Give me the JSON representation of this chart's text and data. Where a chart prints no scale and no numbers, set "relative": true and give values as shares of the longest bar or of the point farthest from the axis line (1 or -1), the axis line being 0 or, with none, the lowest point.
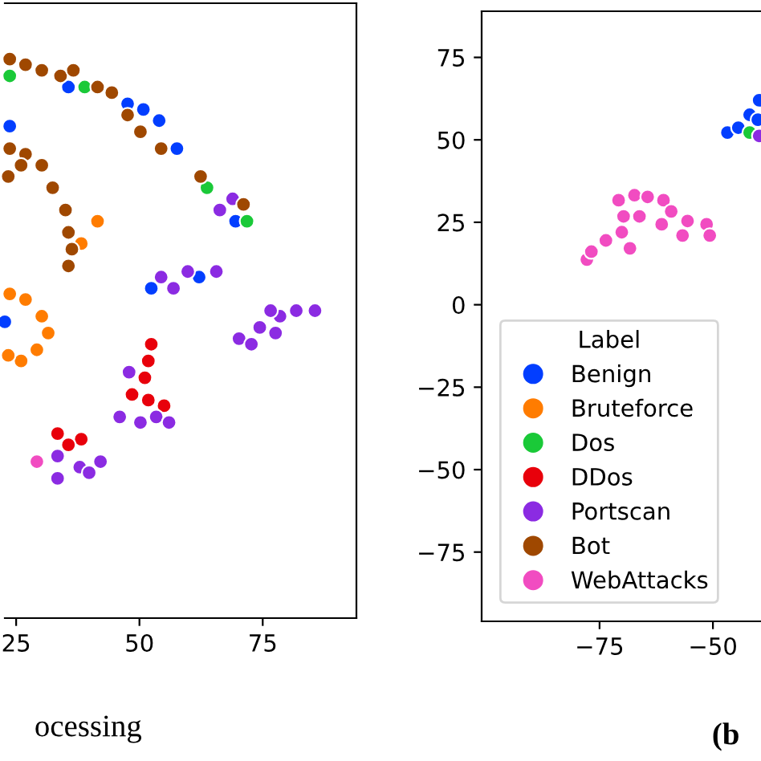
{
  "chart_data": [
    {
      "type": "scatter",
      "xlabel": "ocessing",
      "relative": true,
      "xlim": [
        22.7,
        94
      ],
      "xticks": [
        25,
        50,
        75
      ],
      "grid": false,
      "legend": false,
      "marker": "circle",
      "series": [
        {
          "color": "#023eff",
          "x": [
            35.6,
            47.6,
            50.8,
            54,
            null,
            57.6,
            69.5,
            23.7,
            52.4,
            62.1,
            22.7
          ],
          "values": [
            0.95,
            0.92,
            0.91,
            0.89,
            null,
            0.84,
            0.71,
            0.88,
            0.59,
            0.61,
            0.53
          ]
        },
        {
          "color": "#ff7c00",
          "x": [
            null,
            41.5,
            38.2,
            23.7,
            26.9,
            30.2,
            31.5,
            29.2,
            26,
            23.4,
            null
          ],
          "values": [
            null,
            0.71,
            0.67,
            0.58,
            0.57,
            0.54,
            0.51,
            0.48,
            0.46,
            0.47,
            null
          ]
        },
        {
          "color": "#1ac938",
          "x": [
            38.9,
            63.7,
            71.8,
            23.7
          ],
          "values": [
            0.95,
            0.77,
            0.71,
            0.97
          ]
        },
        {
          "color": "#e8000b",
          "x": [
            52.4,
            51.8,
            51.1,
            48.5,
            51.8,
            55,
            33.4,
            38.2,
            35.6
          ],
          "values": [
            0.49,
            0.46,
            0.43,
            0.4,
            0.39,
            0.38,
            0.33,
            0.32,
            0.31
          ]
        },
        {
          "color": "#8b2be2",
          "x": [
            66.3,
            68.9,
            54.4,
            56.9,
            59.8,
            65.6,
            70.2,
            72.7,
            74.4,
            77.6,
            78.5,
            81.8,
            85.6,
            76.6,
            47.9,
            46,
            50.2,
            53.4,
            56,
            33.4,
            37.9,
            39.8,
            33.4,
            42.1
          ],
          "values": [
            0.73,
            0.75,
            0.61,
            0.59,
            0.62,
            0.62,
            0.5,
            0.49,
            0.52,
            0.51,
            0.54,
            0.55,
            0.55,
            0.55,
            0.44,
            0.36,
            0.35,
            0.36,
            0.35,
            0.29,
            0.27,
            0.26,
            0.25,
            0.28
          ]
        },
        {
          "color": "#9f4800",
          "x": [
            23.7,
            26.9,
            30.2,
            34,
            36.6,
            41.5,
            44.4,
            47.6,
            50.2,
            54.4,
            62.4,
            71.1,
            23.7,
            26.9,
            26,
            30.2,
            32.4,
            35,
            35.6,
            36.3,
            35.6,
            23.4
          ],
          "values": [
            1.0,
            0.99,
            0.98,
            0.97,
            0.98,
            0.95,
            0.94,
            0.9,
            0.87,
            0.84,
            0.79,
            0.74,
            0.84,
            0.83,
            0.81,
            0.81,
            0.77,
            0.73,
            0.69,
            0.66,
            0.63,
            0.79
          ]
        },
        {
          "color": "#f14cc1",
          "x": [
            29.2
          ],
          "values": [
            0.28
          ]
        }
      ]
    },
    {
      "type": "scatter",
      "xlabel": "(b",
      "xlim": [
        -101,
        -39.4
      ],
      "ylim": [
        -96,
        89
      ],
      "xticks": [
        {
          "value": -75,
          "label": "−75"
        },
        {
          "value": -50,
          "label": "−50"
        }
      ],
      "yticks": [
        75,
        50,
        25,
        0,
        {
          "value": -25,
          "label": "−25"
        },
        {
          "value": -50,
          "label": "−50"
        },
        {
          "value": -75,
          "label": "−75"
        }
      ],
      "grid": false,
      "legend": "bottom left",
      "legend_title": "Label",
      "marker": "circle",
      "series": [
        {
          "name": "Benign",
          "color": "#023eff",
          "x": [
            -46.8,
            -44.4,
            -41.9,
            -39.8,
            -40.1
          ],
          "values": [
            52.2,
            53.7,
            57.6,
            62,
            56.1
          ]
        },
        {
          "name": "Bruteforce",
          "color": "#ff7c00"
        },
        {
          "name": "Dos",
          "color": "#1ac938",
          "x": [
            -41.9
          ],
          "values": [
            52.2
          ]
        },
        {
          "name": "DDos",
          "color": "#e8000b"
        },
        {
          "name": "Portscan",
          "color": "#8b2be2",
          "x": [
            -39.8
          ],
          "values": [
            51.2
          ]
        },
        {
          "name": "Bot",
          "color": "#9f4800"
        },
        {
          "name": "WebAttacks",
          "color": "#f14cc1",
          "x": [
            -77.8,
            -76.8,
            -73.6,
            -70.1,
            -69.7,
            -70.8,
            -67.3,
            -64.4,
            -60.9,
            -59.2,
            -61.3,
            -56.7,
            -55.6,
            -51.4,
            -50.7,
            -66.2,
            -68.3
          ],
          "values": [
            13.7,
            16.1,
            19.5,
            22,
            26.8,
            31.7,
            33.2,
            32.7,
            31.7,
            28.3,
            24.4,
            21,
            25.4,
            24.4,
            21,
            26.8,
            17.1
          ]
        }
      ]
    }
  ]
}
